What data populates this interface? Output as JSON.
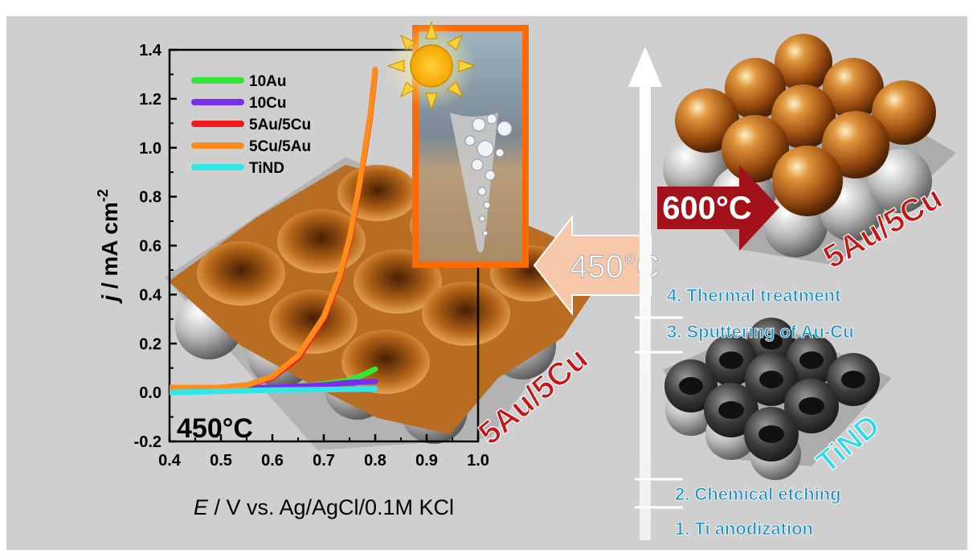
{
  "colors": {
    "panel_background": "#cfcfcf",
    "gold": "#c26a1d",
    "dark_red": "#a3111b",
    "label_blue": "#1f8fbf",
    "tind_cyan": "#2fd9e6",
    "inset_frame": "#ff6a00",
    "arrow_peach": "#f6c7a8"
  },
  "chart_data": {
    "type": "line",
    "xlabel": "E / V vs. Ag/AgCl/0.1M KCl",
    "xlabel_italic": "E",
    "xlabel_rest": " / V vs. Ag/AgCl/0.1M KCl",
    "ylabel": "j / mA cm-2",
    "ylabel_italic": "j",
    "ylabel_rest": " / mA cm",
    "ylabel_sup": "-2",
    "xlim": [
      0.4,
      1.0
    ],
    "ylim": [
      -0.2,
      1.4
    ],
    "xticks": [
      "0.4",
      "0.5",
      "0.6",
      "0.7",
      "0.8",
      "0.9",
      "1.0"
    ],
    "yticks": [
      "-0.2",
      "0.0",
      "0.2",
      "0.4",
      "0.6",
      "0.8",
      "1.0",
      "1.2",
      "1.4"
    ],
    "annotation": "450°C",
    "legend_position": "top-left",
    "series": [
      {
        "name": "10Au",
        "color": "#33e633",
        "x": [
          0.4,
          0.5,
          0.6,
          0.65,
          0.7,
          0.75,
          0.78,
          0.8
        ],
        "y": [
          0.02,
          0.02,
          0.02,
          0.025,
          0.035,
          0.05,
          0.075,
          0.095
        ]
      },
      {
        "name": "10Cu",
        "color": "#7a2cf0",
        "x": [
          0.4,
          0.5,
          0.6,
          0.7,
          0.75,
          0.8
        ],
        "y": [
          0.02,
          0.02,
          0.02,
          0.03,
          0.04,
          0.045
        ]
      },
      {
        "name": "5Au/5Cu",
        "color": "#ee1b1b",
        "x": [
          0.4,
          0.5,
          0.55,
          0.6,
          0.65,
          0.7,
          0.73,
          0.75,
          0.77,
          0.79,
          0.8
        ],
        "y": [
          0.02,
          0.02,
          0.03,
          0.06,
          0.14,
          0.3,
          0.46,
          0.62,
          0.85,
          1.12,
          1.31
        ]
      },
      {
        "name": "5Cu/5Au",
        "color": "#ff8c1a",
        "x": [
          0.4,
          0.5,
          0.55,
          0.6,
          0.65,
          0.7,
          0.73,
          0.75,
          0.77,
          0.79,
          0.8
        ],
        "y": [
          0.02,
          0.02,
          0.03,
          0.065,
          0.15,
          0.31,
          0.47,
          0.63,
          0.86,
          1.13,
          1.32
        ]
      },
      {
        "name": "TiND",
        "color": "#33e6e6",
        "x": [
          0.4,
          0.5,
          0.6,
          0.7,
          0.8
        ],
        "y": [
          0.0,
          0.005,
          0.01,
          0.012,
          0.015
        ]
      }
    ]
  },
  "labels": {
    "inset_450c": "450°C",
    "arrow_450c": "450°C",
    "sample_5au5cu_left": "5Au/5Cu",
    "arrow_600c": "600°C",
    "sample_5au5cu_right": "5Au/5Cu",
    "sample_tind": "TiND",
    "step4": "4. Thermal treatment",
    "step3": "3. Sputtering of Au-Cu",
    "step2": "2. Chemical etching",
    "step1": "1. Ti anodization"
  }
}
